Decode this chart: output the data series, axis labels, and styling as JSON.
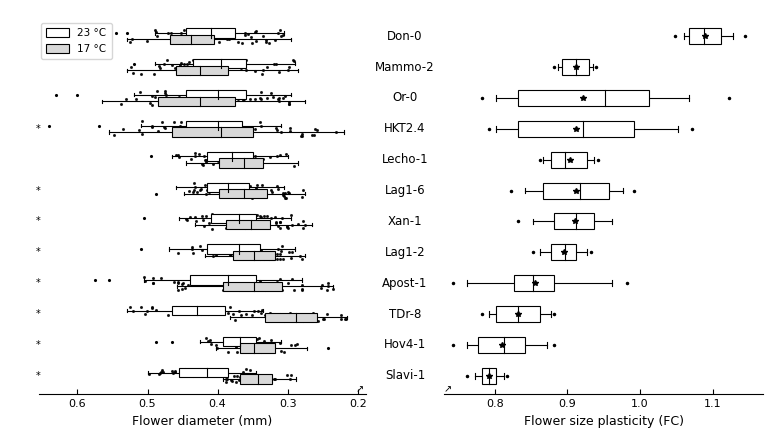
{
  "accessions": [
    "Don-0",
    "Mammo-2",
    "Or-0",
    "HKT2.4",
    "Lecho-1",
    "Lag1-6",
    "Xan-1",
    "Lag1-2",
    "Apost-1",
    "TDr-8",
    "Hov4-1",
    "Slavi-1"
  ],
  "left_23": [
    {
      "whislo": 0.305,
      "q1": 0.375,
      "med": 0.41,
      "q3": 0.445,
      "whishi": 0.49,
      "fliers": [
        0.53,
        0.545
      ]
    },
    {
      "whislo": 0.29,
      "q1": 0.36,
      "med": 0.395,
      "q3": 0.435,
      "whishi": 0.49,
      "fliers": [
        0.52
      ]
    },
    {
      "whislo": 0.295,
      "q1": 0.36,
      "med": 0.4,
      "q3": 0.445,
      "whishi": 0.52,
      "fliers": [
        0.6,
        0.63
      ]
    },
    {
      "whislo": 0.31,
      "q1": 0.365,
      "med": 0.4,
      "q3": 0.445,
      "whishi": 0.51,
      "fliers": [
        0.57,
        0.64
      ]
    },
    {
      "whislo": 0.3,
      "q1": 0.35,
      "med": 0.38,
      "q3": 0.415,
      "whishi": 0.465,
      "fliers": [
        0.495
      ]
    },
    {
      "whislo": 0.305,
      "q1": 0.355,
      "med": 0.385,
      "q3": 0.415,
      "whishi": 0.46,
      "fliers": []
    },
    {
      "whislo": 0.295,
      "q1": 0.345,
      "med": 0.37,
      "q3": 0.41,
      "whishi": 0.455,
      "fliers": [
        0.505
      ]
    },
    {
      "whislo": 0.29,
      "q1": 0.34,
      "med": 0.37,
      "q3": 0.415,
      "whishi": 0.47,
      "fliers": [
        0.51
      ]
    },
    {
      "whislo": 0.28,
      "q1": 0.345,
      "med": 0.385,
      "q3": 0.44,
      "whishi": 0.505,
      "fliers": [
        0.555,
        0.575
      ]
    },
    {
      "whislo": 0.335,
      "q1": 0.39,
      "med": 0.43,
      "q3": 0.465,
      "whishi": 0.53,
      "fliers": []
    },
    {
      "whislo": 0.31,
      "q1": 0.345,
      "med": 0.368,
      "q3": 0.392,
      "whishi": 0.425,
      "fliers": [
        0.465,
        0.488
      ]
    },
    {
      "whislo": 0.345,
      "q1": 0.385,
      "med": 0.415,
      "q3": 0.455,
      "whishi": 0.5,
      "fliers": []
    }
  ],
  "left_17": [
    {
      "whislo": 0.295,
      "q1": 0.405,
      "med": 0.438,
      "q3": 0.468,
      "whishi": 0.53,
      "fliers": []
    },
    {
      "whislo": 0.285,
      "q1": 0.385,
      "med": 0.425,
      "q3": 0.46,
      "whishi": 0.53,
      "fliers": []
    },
    {
      "whislo": 0.275,
      "q1": 0.375,
      "med": 0.425,
      "q3": 0.485,
      "whishi": 0.565,
      "fliers": []
    },
    {
      "whislo": 0.22,
      "q1": 0.35,
      "med": 0.395,
      "q3": 0.465,
      "whishi": 0.555,
      "fliers": []
    },
    {
      "whislo": 0.285,
      "q1": 0.335,
      "med": 0.362,
      "q3": 0.398,
      "whishi": 0.445,
      "fliers": []
    },
    {
      "whislo": 0.275,
      "q1": 0.33,
      "med": 0.362,
      "q3": 0.398,
      "whishi": 0.448,
      "fliers": [
        0.488
      ]
    },
    {
      "whislo": 0.265,
      "q1": 0.325,
      "med": 0.352,
      "q3": 0.388,
      "whishi": 0.432,
      "fliers": []
    },
    {
      "whislo": 0.275,
      "q1": 0.318,
      "med": 0.348,
      "q3": 0.378,
      "whishi": 0.418,
      "fliers": []
    },
    {
      "whislo": 0.235,
      "q1": 0.308,
      "med": 0.348,
      "q3": 0.392,
      "whishi": 0.458,
      "fliers": []
    },
    {
      "whislo": 0.215,
      "q1": 0.258,
      "med": 0.288,
      "q3": 0.332,
      "whishi": 0.382,
      "fliers": [
        0.182
      ]
    },
    {
      "whislo": 0.272,
      "q1": 0.318,
      "med": 0.348,
      "q3": 0.368,
      "whishi": 0.402,
      "fliers": [
        0.242
      ]
    },
    {
      "whislo": 0.288,
      "q1": 0.322,
      "med": 0.342,
      "q3": 0.368,
      "whishi": 0.392,
      "fliers": []
    }
  ],
  "right": [
    {
      "whislo": 1.06,
      "q1": 1.068,
      "med": 1.088,
      "q3": 1.112,
      "whishi": 1.128,
      "fliers_lo": [
        1.048
      ],
      "fliers_hi": [
        1.145
      ],
      "mean": 1.09
    },
    {
      "whislo": 0.887,
      "q1": 0.893,
      "med": 0.912,
      "q3": 0.93,
      "whishi": 0.935,
      "fliers_lo": [
        0.882
      ],
      "fliers_hi": [
        0.94
      ],
      "mean": 0.912
    },
    {
      "whislo": 0.802,
      "q1": 0.832,
      "med": 0.952,
      "q3": 1.012,
      "whishi": 1.068,
      "fliers_lo": [
        0.782
      ],
      "fliers_hi": [
        1.122
      ],
      "mean": 0.922
    },
    {
      "whislo": 0.802,
      "q1": 0.832,
      "med": 0.922,
      "q3": 0.992,
      "whishi": 1.052,
      "fliers_lo": [
        0.792
      ],
      "fliers_hi": [
        1.072
      ],
      "mean": 0.912
    },
    {
      "whislo": 0.867,
      "q1": 0.878,
      "med": 0.897,
      "q3": 0.927,
      "whishi": 0.937,
      "fliers_lo": [
        0.862
      ],
      "fliers_hi": [
        0.942
      ],
      "mean": 0.903
    },
    {
      "whislo": 0.842,
      "q1": 0.867,
      "med": 0.917,
      "q3": 0.957,
      "whishi": 0.977,
      "fliers_lo": [
        0.822
      ],
      "fliers_hi": [
        0.992
      ],
      "mean": 0.912
    },
    {
      "whislo": 0.852,
      "q1": 0.882,
      "med": 0.912,
      "q3": 0.937,
      "whishi": 0.962,
      "fliers_lo": [
        0.832
      ],
      "fliers_hi": [],
      "mean": 0.91
    },
    {
      "whislo": 0.862,
      "q1": 0.877,
      "med": 0.897,
      "q3": 0.912,
      "whishi": 0.927,
      "fliers_lo": [
        0.852
      ],
      "fliers_hi": [
        0.932
      ],
      "mean": 0.895
    },
    {
      "whislo": 0.762,
      "q1": 0.827,
      "med": 0.852,
      "q3": 0.882,
      "whishi": 0.962,
      "fliers_lo": [
        0.742
      ],
      "fliers_hi": [
        0.982
      ],
      "mean": 0.855
    },
    {
      "whislo": 0.792,
      "q1": 0.802,
      "med": 0.832,
      "q3": 0.862,
      "whishi": 0.877,
      "fliers_lo": [
        0.782
      ],
      "fliers_hi": [
        0.882
      ],
      "mean": 0.832
    },
    {
      "whislo": 0.762,
      "q1": 0.777,
      "med": 0.812,
      "q3": 0.842,
      "whishi": 0.872,
      "fliers_lo": [
        0.742
      ],
      "fliers_hi": [
        0.882
      ],
      "mean": 0.81
    },
    {
      "whislo": 0.772,
      "q1": 0.782,
      "med": 0.792,
      "q3": 0.802,
      "whishi": 0.812,
      "fliers_lo": [
        0.762
      ],
      "fliers_hi": [
        0.817
      ],
      "mean": 0.792
    }
  ],
  "significant": [
    false,
    false,
    false,
    true,
    false,
    true,
    true,
    true,
    true,
    true,
    true,
    true
  ],
  "xlim_left": [
    0.655,
    0.188
  ],
  "xlim_right": [
    0.73,
    1.17
  ],
  "xticks_left": [
    0.6,
    0.5,
    0.4,
    0.3,
    0.2
  ],
  "xticks_right": [
    0.8,
    0.9,
    1.0,
    1.1
  ],
  "xlabel_left": "Flower diameter (mm)",
  "xlabel_right": "Flower size plasticity (FC)",
  "legend_23": "23 °C",
  "legend_17": "17 °C"
}
